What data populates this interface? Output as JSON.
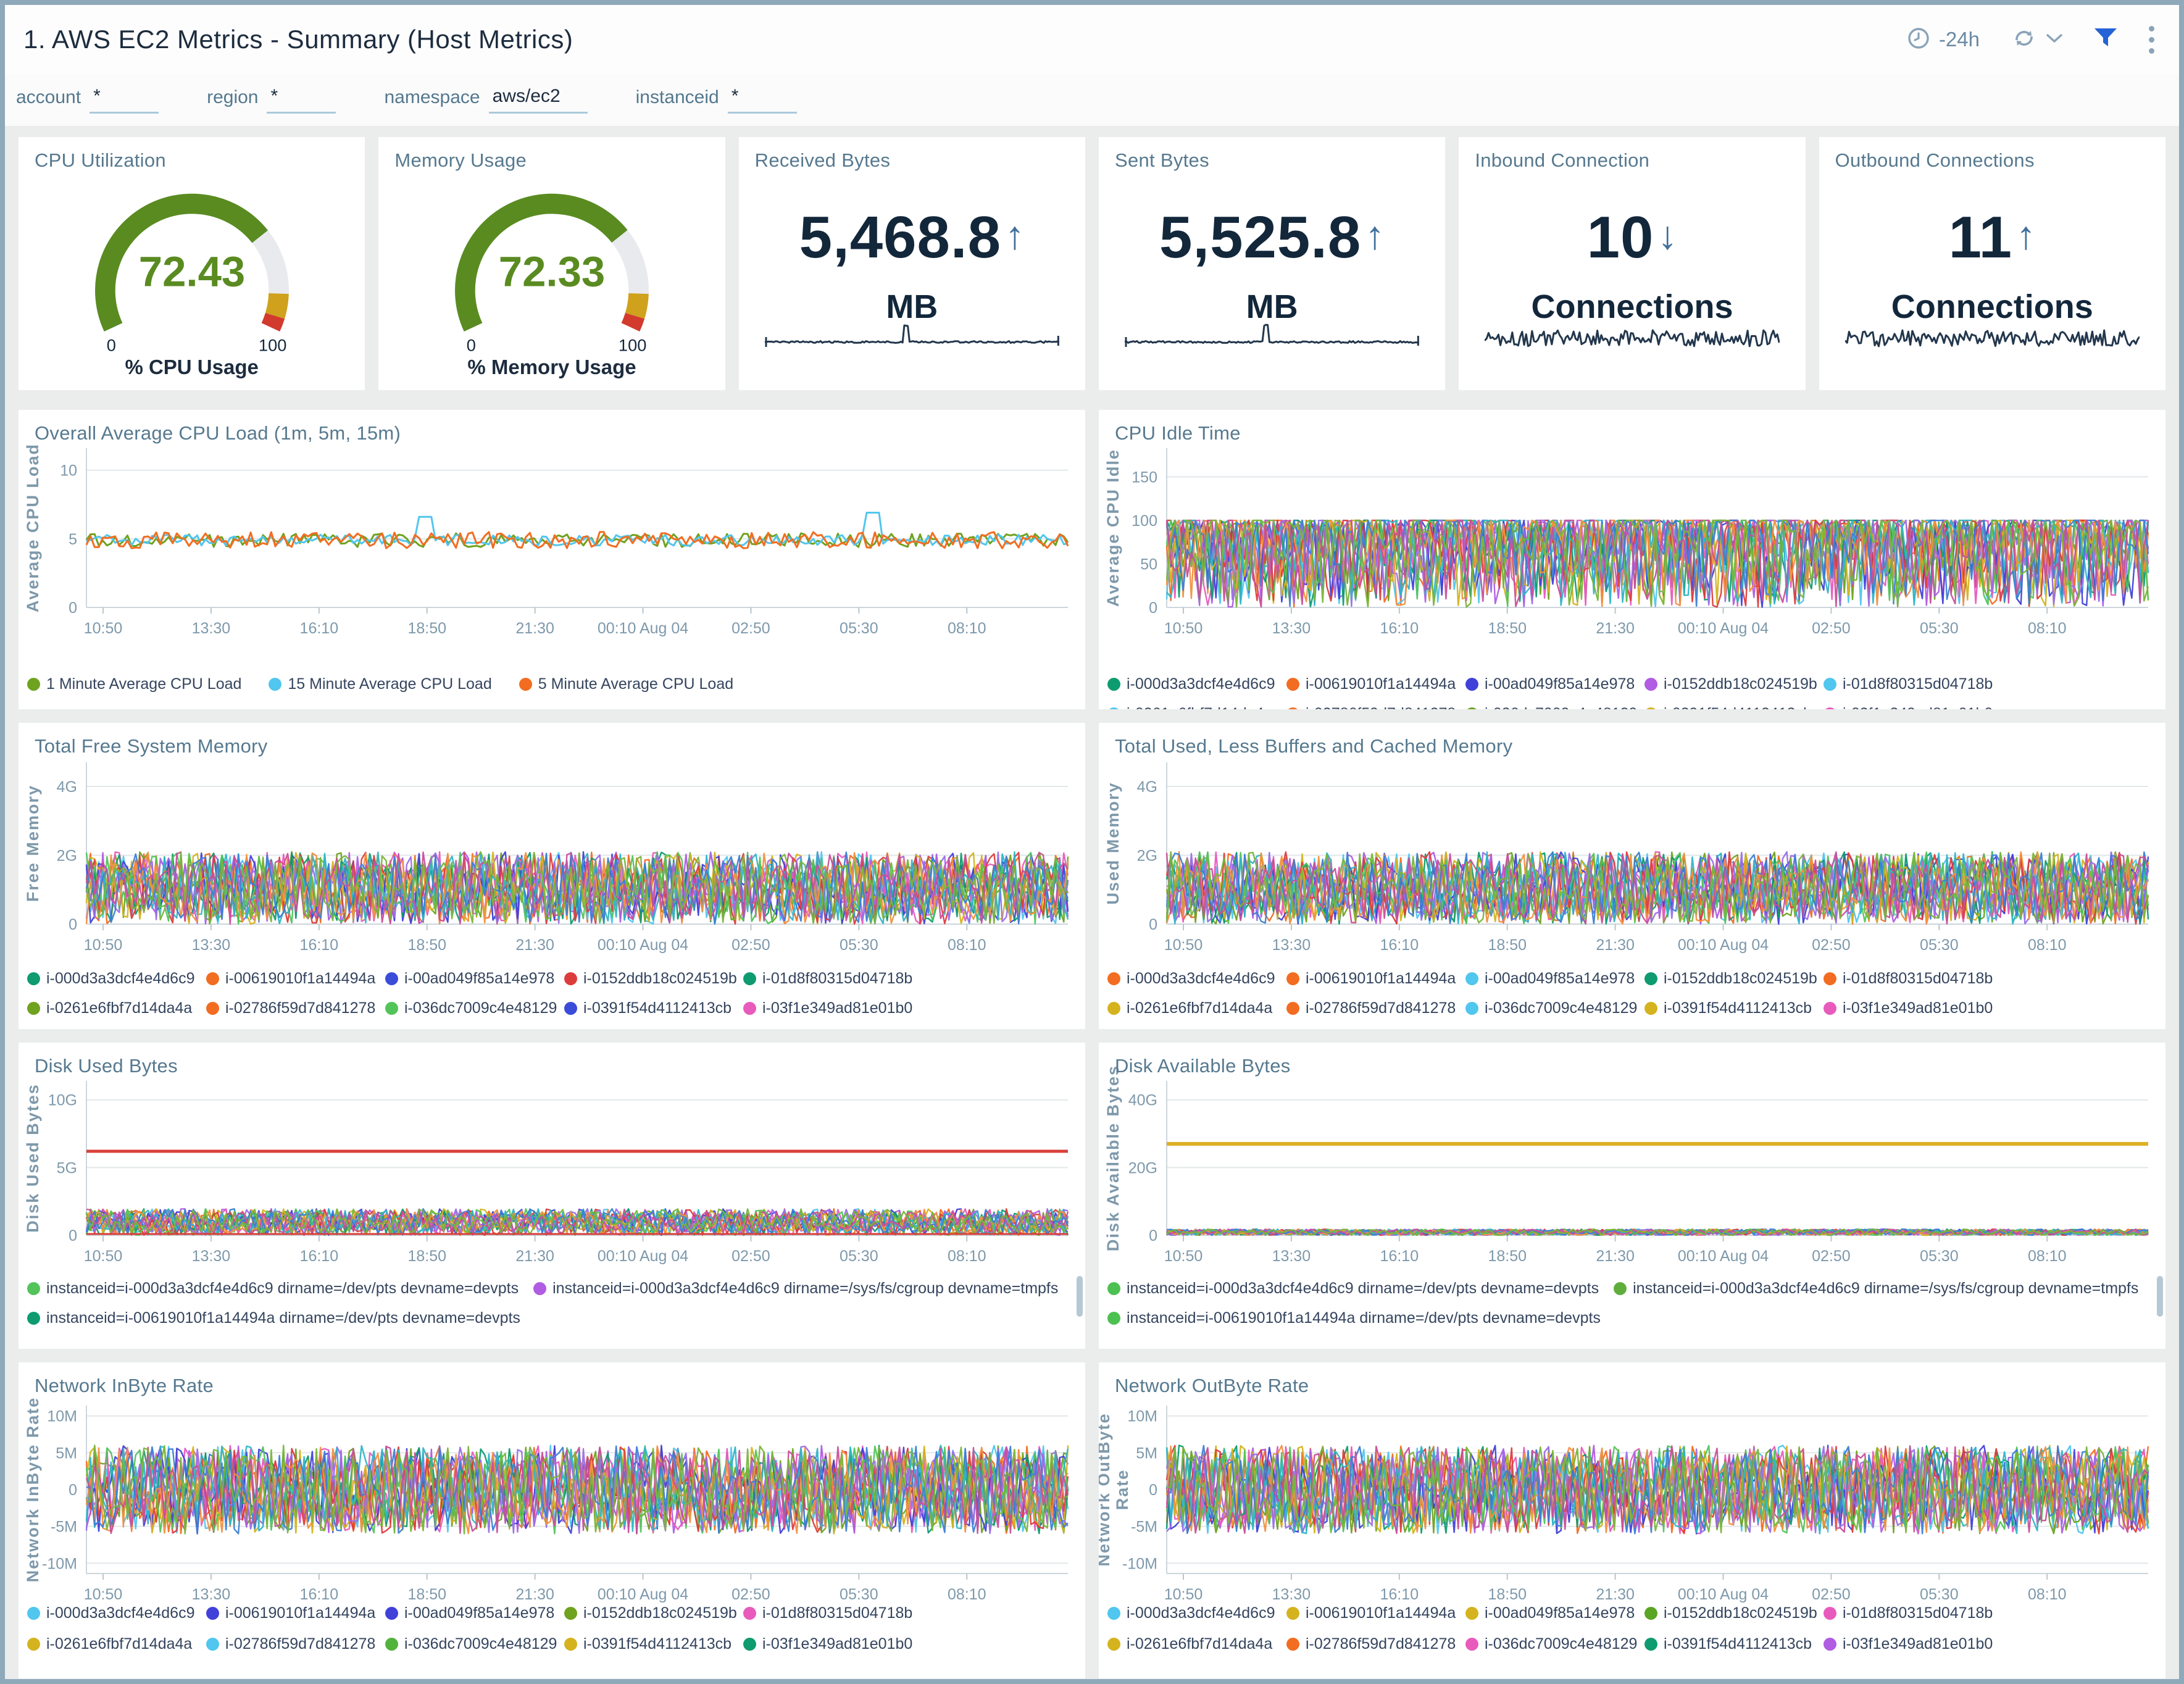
{
  "header": {
    "title": "1. AWS EC2 Metrics - Summary (Host Metrics)",
    "time_range": "-24h"
  },
  "filters": [
    {
      "label": "account",
      "value": "*",
      "wide": false
    },
    {
      "label": "region",
      "value": "*",
      "wide": false
    },
    {
      "label": "namespace",
      "value": "aws/ec2",
      "wide": true
    },
    {
      "label": "instanceid",
      "value": "*",
      "wide": false
    }
  ],
  "kpis": [
    {
      "key": "cpu-utilization",
      "title": "CPU Utilization",
      "type": "gauge",
      "value": "72.43",
      "min": "0",
      "max": "100",
      "caption": "% CPU Usage"
    },
    {
      "key": "memory-usage",
      "title": "Memory Usage",
      "type": "gauge",
      "value": "72.33",
      "min": "0",
      "max": "100",
      "caption": "% Memory Usage"
    },
    {
      "key": "received-bytes",
      "title": "Received Bytes",
      "type": "number",
      "value": "5,468.8",
      "trend": "up",
      "unit": "MB",
      "spark": "flat-spike"
    },
    {
      "key": "sent-bytes",
      "title": "Sent Bytes",
      "type": "number",
      "value": "5,525.8",
      "trend": "up",
      "unit": "MB",
      "spark": "flat-spike"
    },
    {
      "key": "inbound-connection",
      "title": "Inbound Connection",
      "type": "number",
      "value": "10",
      "trend": "down",
      "unit": "Connections",
      "spark": "jagged"
    },
    {
      "key": "outbound-connections",
      "title": "Outbound Connections",
      "type": "number",
      "value": "11",
      "trend": "up",
      "unit": "Connections",
      "spark": "jagged"
    }
  ],
  "time_axis": [
    "10:50",
    "13:30",
    "16:10",
    "18:50",
    "21:30",
    "00:10 Aug 04",
    "02:50",
    "05:30",
    "08:10"
  ],
  "instances": [
    "i-000d3a3dcf4e4d6c9",
    "i-00619010f1a14494a",
    "i-00ad049f85a14e978",
    "i-0152ddb18c024519b",
    "i-01d8f80315d04718b",
    "i-0261e6fbf7d14da4a",
    "i-02786f59d7d841278",
    "i-036dc7009c4e48129",
    "i-0391f54d4112413cb",
    "i-03f1e349ad81e01b0"
  ],
  "chart_data": [
    {
      "key": "cpu_load",
      "type": "line",
      "row": 2,
      "side": "left",
      "title": "Overall Average CPU Load (1m, 5m, 15m)",
      "ylabel": [
        "Average CPU Load"
      ],
      "yticks": [
        {
          "label": "10",
          "value": 10
        },
        {
          "label": "5",
          "value": 5
        },
        {
          "label": "0",
          "value": 0
        }
      ],
      "ylim": [
        0,
        11.6
      ],
      "x_ref": "time_axis",
      "series": [
        {
          "name": "1 Minute Average CPU Load",
          "color": "#6fa21f",
          "band": [
            4.4,
            5.4
          ]
        },
        {
          "name": "15 Minute Average CPU Load",
          "color": "#51c6ee",
          "band": [
            4.5,
            5.3
          ],
          "spikes": [
            {
              "x_frac": 0.345,
              "value": 6.6
            },
            {
              "x_frac": 0.8,
              "value": 6.9
            }
          ]
        },
        {
          "name": "5 Minute Average CPU Load",
          "color": "#f26d21",
          "band": [
            4.3,
            5.5
          ]
        }
      ]
    },
    {
      "key": "cpu_idle",
      "type": "line",
      "row": 2,
      "side": "right",
      "title": "CPU Idle Time",
      "ylabel": [
        "Average CPU Idle"
      ],
      "yticks": [
        {
          "label": "150",
          "value": 150
        },
        {
          "label": "100",
          "value": 100
        },
        {
          "label": "50",
          "value": 50
        },
        {
          "label": "0",
          "value": 0
        }
      ],
      "ylim": [
        0,
        183
      ],
      "x_ref": "time_axis",
      "value_range": [
        0,
        100
      ],
      "legend_ref": "instances",
      "legend_colors": [
        "#0e9b70",
        "#f26d21",
        "#4141d9",
        "#b05ce3",
        "#51c6ee",
        "#51c6ee",
        "#f26d21",
        "#6fa21f",
        "#d4b31e",
        "#e85bbd"
      ]
    },
    {
      "key": "free_memory",
      "type": "line",
      "row": 3,
      "side": "left",
      "title": "Total Free System Memory",
      "ylabel": [
        "Free Memory"
      ],
      "yticks": [
        {
          "label": "4G",
          "value": 4000000000
        },
        {
          "label": "2G",
          "value": 2000000000
        },
        {
          "label": "0",
          "value": 0
        }
      ],
      "ylim": [
        0,
        4700000000
      ],
      "x_ref": "time_axis",
      "value_range": [
        0,
        2100000000
      ],
      "legend_ref": "instances",
      "legend_colors": [
        "#0e9b70",
        "#f26d21",
        "#3b4cd8",
        "#dd3c3c",
        "#0e9b70",
        "#6fa21f",
        "#f26d21",
        "#52c45a",
        "#3b4cd8",
        "#e85bbd"
      ]
    },
    {
      "key": "used_memory",
      "type": "line",
      "row": 3,
      "side": "right",
      "title": "Total Used, Less Buffers and Cached Memory",
      "ylabel": [
        "Used Memory"
      ],
      "yticks": [
        {
          "label": "4G",
          "value": 4000000000
        },
        {
          "label": "2G",
          "value": 2000000000
        },
        {
          "label": "0",
          "value": 0
        }
      ],
      "ylim": [
        0,
        4700000000
      ],
      "x_ref": "time_axis",
      "value_range": [
        0,
        2100000000
      ],
      "legend_ref": "instances",
      "legend_colors": [
        "#f26d21",
        "#f26d21",
        "#51c6ee",
        "#0e9b70",
        "#f26d21",
        "#d4b31e",
        "#f26d21",
        "#51c6ee",
        "#d4b31e",
        "#e85bbd"
      ]
    },
    {
      "key": "disk_used",
      "type": "line",
      "row": 4,
      "side": "left",
      "title": "Disk Used Bytes",
      "ylabel": [
        "Disk Used Bytes"
      ],
      "yticks": [
        {
          "label": "10G",
          "value": 10000000000
        },
        {
          "label": "5G",
          "value": 5000000000
        },
        {
          "label": "0",
          "value": 0
        }
      ],
      "ylim": [
        0,
        11400000000
      ],
      "x_ref": "time_axis",
      "value_range": [
        0,
        1950000000
      ],
      "constants": [
        {
          "value": 6200000000,
          "color": "#d9403a",
          "width": 5
        },
        {
          "value": 90000000,
          "color": "#d9403a",
          "width": 3
        }
      ],
      "legend_items": [
        {
          "label": "instanceid=i-000d3a3dcf4e4d6c9 dirname=/dev/pts devname=devpts",
          "color": "#52c45a"
        },
        {
          "label": "instanceid=i-000d3a3dcf4e4d6c9 dirname=/sys/fs/cgroup devname=tmpfs",
          "color": "#b05ce3"
        },
        {
          "label": "instanceid=i-00619010f1a14494a dirname=/dev/pts devname=devpts",
          "color": "#0e9b70"
        }
      ],
      "legend_scrollbar": true,
      "legend_clipped_next_color": "#dd3c3c"
    },
    {
      "key": "disk_avail",
      "type": "line",
      "row": 4,
      "side": "right",
      "title": "Disk Available Bytes",
      "ylabel": [
        "Disk Available Bytes"
      ],
      "yticks": [
        {
          "label": "40G",
          "value": 40000000000
        },
        {
          "label": "20G",
          "value": 20000000000
        },
        {
          "label": "0",
          "value": 0
        }
      ],
      "ylim": [
        0,
        45600000000
      ],
      "x_ref": "time_axis",
      "value_range": [
        0,
        1800000000
      ],
      "constants": [
        {
          "value": 27000000000,
          "color": "#ddb125",
          "width": 6
        }
      ],
      "legend_items": [
        {
          "label": "instanceid=i-000d3a3dcf4e4d6c9 dirname=/dev/pts devname=devpts",
          "color": "#4cc152"
        },
        {
          "label": "instanceid=i-000d3a3dcf4e4d6c9 dirname=/sys/fs/cgroup devname=tmpfs",
          "color": "#5fae3d"
        },
        {
          "label": "instanceid=i-00619010f1a14494a dirname=/dev/pts devname=devpts",
          "color": "#4cc152"
        }
      ],
      "legend_scrollbar": true,
      "legend_clipped_next_color": "#dd3c3c"
    },
    {
      "key": "net_in",
      "type": "line",
      "row": 5,
      "side": "left",
      "title": "Network InByte Rate",
      "ylabel": [
        "Network InByte Rate"
      ],
      "yticks": [
        {
          "label": "10M",
          "value": 10000000
        },
        {
          "label": "5M",
          "value": 5000000
        },
        {
          "label": "0",
          "value": 0
        },
        {
          "label": "-5M",
          "value": -5000000
        },
        {
          "label": "-10M",
          "value": -10000000
        }
      ],
      "ylim": [
        -11400000,
        11400000
      ],
      "x_ref": "time_axis",
      "value_range": [
        -6000000,
        6000000
      ],
      "legend_ref": "instances",
      "legend_colors": [
        "#51c6ee",
        "#4141d9",
        "#4141d9",
        "#6fa21f",
        "#e85bbd",
        "#d4b31e",
        "#51c6ee",
        "#52b33c",
        "#d4b31e",
        "#0e9b70"
      ]
    },
    {
      "key": "net_out",
      "type": "line",
      "row": 5,
      "side": "right",
      "title": "Network OutByte Rate",
      "ylabel": [
        "Network OutByte",
        "Rate"
      ],
      "yticks": [
        {
          "label": "10M",
          "value": 10000000
        },
        {
          "label": "5M",
          "value": 5000000
        },
        {
          "label": "0",
          "value": 0
        },
        {
          "label": "-5M",
          "value": -5000000
        },
        {
          "label": "-10M",
          "value": -10000000
        }
      ],
      "ylim": [
        -11400000,
        11400000
      ],
      "x_ref": "time_axis",
      "value_range": [
        -6000000,
        6000000
      ],
      "legend_ref": "instances",
      "legend_colors": [
        "#51c6ee",
        "#d4b31e",
        "#d4b31e",
        "#5aa524",
        "#e85bbd",
        "#d4b31e",
        "#f26d21",
        "#e85bbd",
        "#0e9b70",
        "#b05ce3"
      ]
    }
  ],
  "colors": {
    "frame_border": "#8ea9b9",
    "panel_bg": "#ffffff",
    "page_bg": "#ebecec",
    "panel_title": "#56798f",
    "tick_text": "#7e99ab",
    "legend_text": "#35455e",
    "dark_text": "#13273b",
    "arrow_blue": "#3f6f9b",
    "gauge_green": "#5a8b21",
    "gauge_track": "#e8eaee",
    "gauge_gold": "#cfa11d",
    "gauge_red": "#d23a2e",
    "sparkline": "#23374d",
    "filter_icon_blue": "#2563d6",
    "grid_line": "#e2e7ea",
    "axis_line": "#ccd6dc",
    "noise_palette": [
      "#f26d21",
      "#51c6ee",
      "#6fa21f",
      "#b05ce3",
      "#e85bbd",
      "#4141d9",
      "#0e9b70",
      "#d4b31e",
      "#dd3c3c",
      "#52c45a",
      "#9a6ee8",
      "#2fb5c7",
      "#f2903f",
      "#3b7fd6",
      "#c94f9a",
      "#79b53a"
    ]
  }
}
